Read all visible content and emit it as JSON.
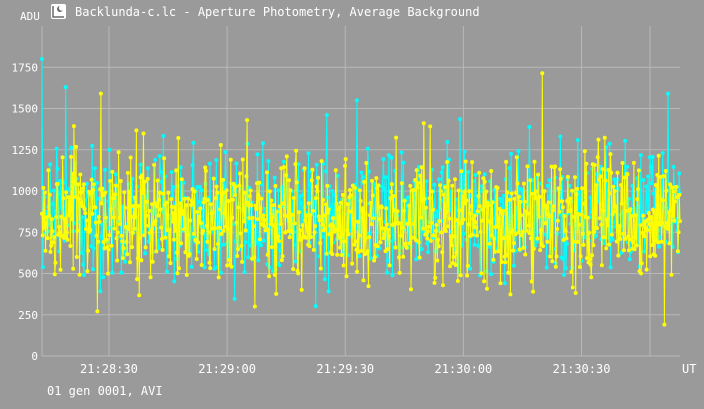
{
  "window": {
    "title": "Backlunda-c.lc - Aperture Photometry, Average Background",
    "icon": "moon-chart-icon"
  },
  "footer": {
    "text": "01 gen 0001, AVI"
  },
  "colors": {
    "background": "#9a9a9a",
    "grid": "#b8b8b8",
    "text": "#ffffff",
    "series_cyan": "#00ffff",
    "series_yellow": "#ffff00"
  },
  "chart_data": {
    "type": "line",
    "ylabel": "ADU",
    "xlabel": "UT",
    "ylim": [
      0,
      2000
    ],
    "y_ticks": [
      {
        "value": 0,
        "label": "0"
      },
      {
        "value": 250,
        "label": "250"
      },
      {
        "value": 500,
        "label": "500"
      },
      {
        "value": 750,
        "label": "750"
      },
      {
        "value": 1000,
        "label": "1000"
      },
      {
        "value": 1250,
        "label": "1250"
      },
      {
        "value": 1500,
        "label": "1500"
      },
      {
        "value": 1750,
        "label": "1750"
      }
    ],
    "x_range_seconds": [
      "21:28:13",
      "21:30:55"
    ],
    "x_ticks": [
      {
        "time": "21:28:30",
        "label": "21:28:30"
      },
      {
        "time": "21:29:00",
        "label": "21:29:00"
      },
      {
        "time": "21:29:30",
        "label": "21:29:30"
      },
      {
        "time": "21:30:00",
        "label": "21:30:00"
      },
      {
        "time": "21:30:30",
        "label": "21:30:30"
      }
    ],
    "grid": true,
    "series": [
      {
        "color": "#00ffff",
        "x_start": "21:28:13",
        "x_end": "21:30:55",
        "count": 700,
        "mean": 870,
        "spread": 190,
        "peaks": [
          {
            "time": "21:28:13",
            "value": 1800
          },
          {
            "time": "21:28:19",
            "value": 1630
          },
          {
            "time": "21:29:33",
            "value": 1550
          },
          {
            "time": "21:30:52",
            "value": 1590
          }
        ]
      },
      {
        "color": "#ffff00",
        "x_start": "21:28:13",
        "x_end": "21:30:55",
        "count": 900,
        "mean": 820,
        "spread": 180,
        "peaks": [
          {
            "time": "21:28:28",
            "value": 1590
          },
          {
            "time": "21:29:05",
            "value": 1430
          },
          {
            "time": "21:28:27",
            "value": 270
          },
          {
            "time": "21:30:51",
            "value": 190
          }
        ]
      }
    ]
  }
}
